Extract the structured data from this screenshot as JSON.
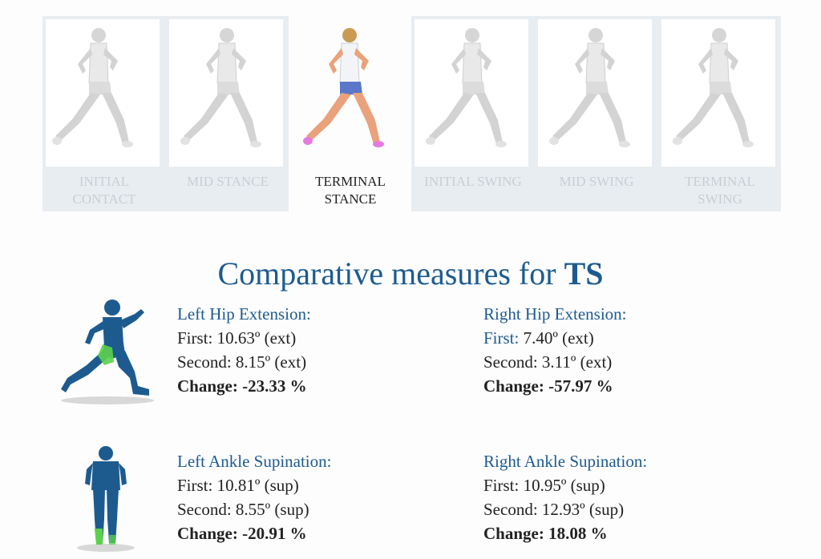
{
  "phases": [
    {
      "label_line1": "INITIAL",
      "label_line2": "CONTACT",
      "active": false
    },
    {
      "label_line1": "MID STANCE",
      "label_line2": "",
      "active": false
    },
    {
      "label_line1": "TERMINAL",
      "label_line2": "STANCE",
      "active": true
    },
    {
      "label_line1": "INITIAL SWING",
      "label_line2": "",
      "active": false
    },
    {
      "label_line1": "MID SWING",
      "label_line2": "",
      "active": false
    },
    {
      "label_line1": "TERMINAL",
      "label_line2": "SWING",
      "active": false
    }
  ],
  "heading": {
    "text": "Comparative measures for ",
    "bold": "TS"
  },
  "measures": {
    "left_hip": {
      "title": "Left Hip Extension:",
      "first_label": "First:",
      "first_value": "10.63º (ext)",
      "second_label": "Second:",
      "second_value": "8.15º (ext)",
      "change_label": "Change:",
      "change_value": "-23.33 %"
    },
    "right_hip": {
      "title": "Right Hip Extension:",
      "first_label": "First:",
      "first_value": "7.40º (ext)",
      "second_label": "Second:",
      "second_value": "3.11º (ext)",
      "change_label": "Change:",
      "change_value": "-57.97 %"
    },
    "left_ankle": {
      "title": "Left Ankle Supination:",
      "first_label": "First:",
      "first_value": "10.81º (sup)",
      "second_label": "Second:",
      "second_value": "8.55º (sup)",
      "change_label": "Change:",
      "change_value": "-20.91 %"
    },
    "right_ankle": {
      "title": "Right Ankle Supination:",
      "first_label": "First:",
      "first_value": "10.95º (sup)",
      "second_label": "Second:",
      "second_value": "12.93º (sup)",
      "change_label": "Change:",
      "change_value": "18.08 %"
    }
  },
  "colors": {
    "heading": "#1d5b8f",
    "inactive_label": "#c9ced3",
    "silhouette": "#1d5b8f",
    "highlight": "#5bd14a"
  },
  "icons": {
    "runner": "runner-figure-icon",
    "side_silhouette": "runner-side-silhouette-icon",
    "back_silhouette": "runner-back-silhouette-icon"
  }
}
